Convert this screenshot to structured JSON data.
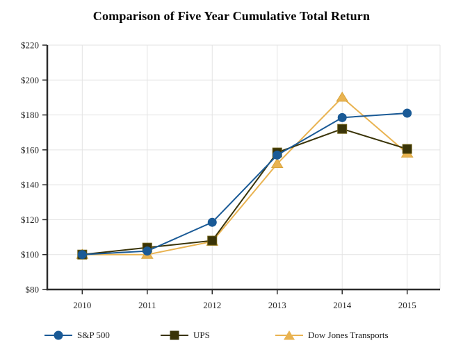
{
  "chart_data": {
    "type": "line",
    "title": "Comparison of Five Year Cumulative Total Return",
    "xlabel": "",
    "ylabel": "",
    "categories": [
      "2010",
      "2011",
      "2012",
      "2013",
      "2014",
      "2015"
    ],
    "ylim": [
      80,
      220
    ],
    "yticks": [
      {
        "value": 80,
        "label": "$80"
      },
      {
        "value": 100,
        "label": "$100"
      },
      {
        "value": 120,
        "label": "$120"
      },
      {
        "value": 140,
        "label": "$140"
      },
      {
        "value": 160,
        "label": "$160"
      },
      {
        "value": 180,
        "label": "$180"
      },
      {
        "value": 200,
        "label": "$200"
      },
      {
        "value": 220,
        "label": "$220"
      }
    ],
    "grid": true,
    "legend_position": "bottom",
    "series": [
      {
        "name": "S&P 500",
        "marker": "circle",
        "color": "#1a5a96",
        "edge_color": "#14497c",
        "values": [
          100,
          102,
          118.5,
          157,
          178.5,
          181
        ]
      },
      {
        "name": "UPS",
        "marker": "square",
        "color": "#3a3408",
        "edge_color": "#6b5e14",
        "values": [
          100,
          104,
          108,
          158.5,
          172,
          160.5
        ]
      },
      {
        "name": "Dow Jones Transports",
        "marker": "triangle",
        "color": "#e9b351",
        "edge_color": "#d9a53d",
        "values": [
          100,
          100,
          107.5,
          152,
          190,
          158
        ]
      }
    ],
    "colors": {
      "grid": "#e3e3e3",
      "axis": "#2b2b2b",
      "tick_label": "#262626",
      "title": "#000000"
    }
  }
}
